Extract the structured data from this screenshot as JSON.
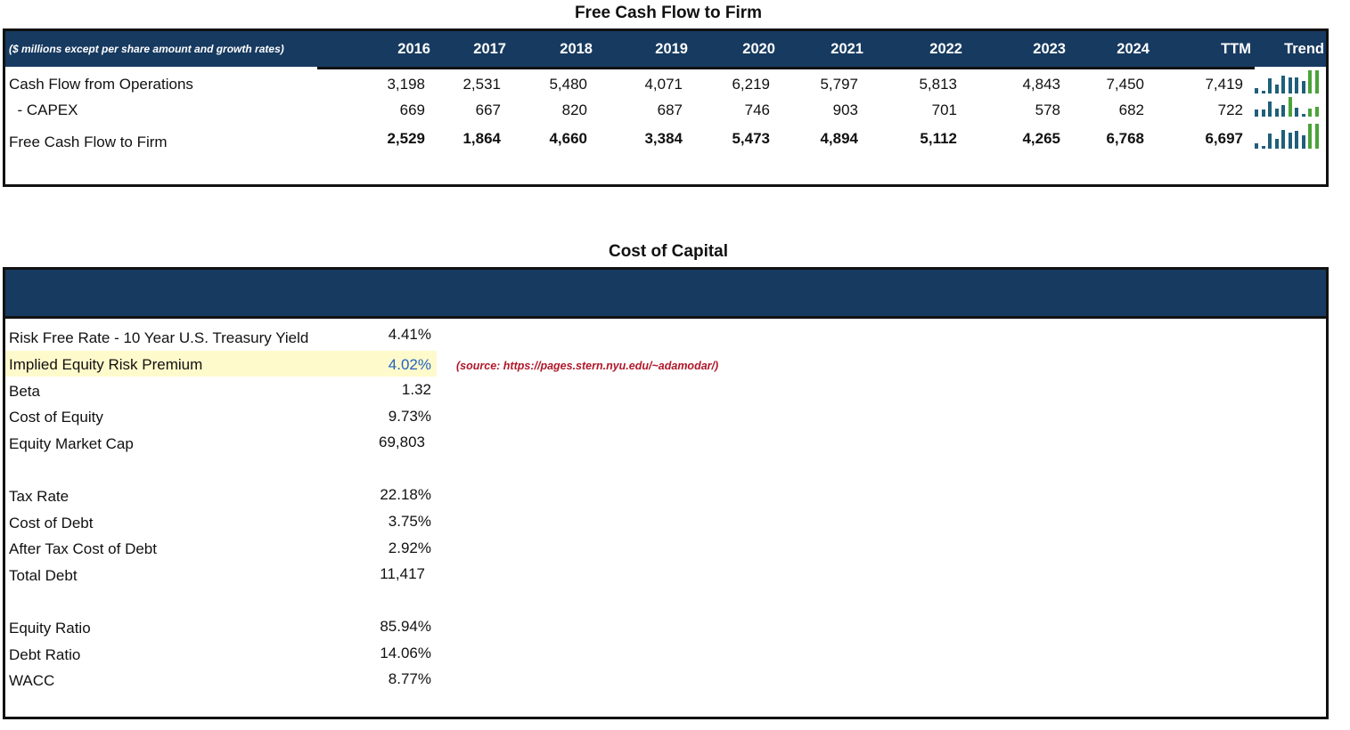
{
  "fcf": {
    "title": "Free Cash Flow to Firm",
    "units_note": "($ millions except per share amount and growth rates)",
    "columns": [
      "2016",
      "2017",
      "2018",
      "2019",
      "2020",
      "2021",
      "2022",
      "2023",
      "2024",
      "TTM",
      "Trend"
    ],
    "rows": [
      {
        "label": "Cash Flow from Operations",
        "values": [
          "3,198",
          "2,531",
          "5,480",
          "4,071",
          "6,219",
          "5,797",
          "5,813",
          "4,843",
          "7,450",
          "7,419"
        ],
        "bold": false,
        "trend": [
          3198,
          2531,
          5480,
          4071,
          6219,
          5797,
          5813,
          4843,
          7450,
          7419
        ]
      },
      {
        "label": "  - CAPEX",
        "values": [
          "669",
          "667",
          "820",
          "687",
          "746",
          "903",
          "701",
          "578",
          "682",
          "722"
        ],
        "bold": false,
        "trend": [
          669,
          667,
          820,
          687,
          746,
          903,
          701,
          578,
          682,
          722
        ]
      },
      {
        "label": "Free Cash Flow to Firm",
        "values": [
          "2,529",
          "1,864",
          "4,660",
          "3,384",
          "5,473",
          "4,894",
          "5,112",
          "4,265",
          "6,768",
          "6,697"
        ],
        "bold": true,
        "trend": [
          2529,
          1864,
          4660,
          3384,
          5473,
          4894,
          5112,
          4265,
          6768,
          6697
        ]
      }
    ],
    "colors": {
      "header_bg": "#173a60",
      "trend_dark": "#1f5f7a",
      "trend_green": "#4aa33a"
    }
  },
  "coc": {
    "title": "Cost of Capital",
    "rows": [
      {
        "label": "Risk Free Rate - 10 Year U.S. Treasury Yield",
        "value": "4.41%"
      },
      {
        "label": "Implied Equity Risk Premium",
        "value": "4.02%",
        "highlight": true,
        "value_color": "#1f63c0"
      },
      {
        "label": "Beta",
        "value": "1.32"
      },
      {
        "label": "Cost of Equity",
        "value": "9.73%"
      },
      {
        "label": "Equity Market Cap",
        "value": "69,803"
      },
      {
        "label": "Tax Rate",
        "value": "22.18%"
      },
      {
        "label": "Cost of Debt",
        "value": "3.75%"
      },
      {
        "label": "After Tax Cost of Debt",
        "value": "2.92%"
      },
      {
        "label": "Total Debt",
        "value": "11,417"
      },
      {
        "label": "Equity Ratio",
        "value": "85.94%"
      },
      {
        "label": "Debt Ratio",
        "value": "14.06%"
      },
      {
        "label": "WACC",
        "value": "8.77%"
      }
    ],
    "source_note": "(source: https://pages.stern.nyu.edu/~adamodar/)",
    "highlight_color": "#fffacc",
    "source_color": "#b0172a"
  }
}
